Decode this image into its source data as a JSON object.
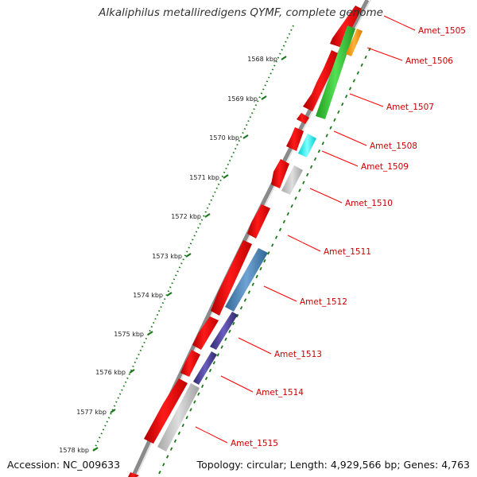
{
  "title": "Alkaliphilus metalliredigens QYMF, complete genome",
  "accession": "Accession: NC_009633",
  "summary": "Topology: circular; Length: 4,929,566 bp; Genes: 4,763",
  "ticks": [
    "1568 kbp",
    "1569 kbp",
    "1570 kbp",
    "1571 kbp",
    "1572 kbp",
    "1573 kbp",
    "1574 kbp",
    "1575 kbp",
    "1576 kbp",
    "1577 kbp",
    "1578 kbp"
  ],
  "genes": [
    "Amet_1505",
    "Amet_1506",
    "Amet_1507",
    "Amet_1508",
    "Amet_1509",
    "Amet_1510",
    "Amet_1511",
    "Amet_1512",
    "Amet_1513",
    "Amet_1514",
    "Amet_1515"
  ],
  "colors": {
    "backbone": "#8a8a8a",
    "cds": "#ff0000",
    "tick": "#1a7a1a",
    "label": "#cc0000",
    "leader": "#ff0000",
    "gene_green": "#33cc33",
    "gene_orange": "#ff9900",
    "gene_cyan": "#00ffff",
    "gene_gray": "#c0c0c0",
    "gene_steelblue": "#4682b4",
    "gene_darkslate": "#483d8b"
  }
}
